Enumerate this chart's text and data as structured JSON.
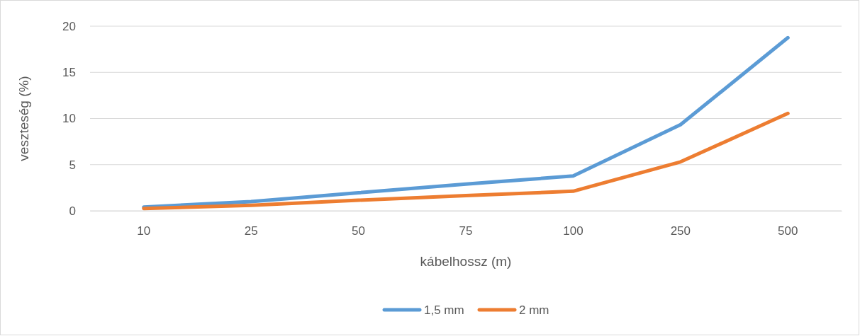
{
  "chart_data": {
    "type": "line",
    "xlabel": "kábelhossz (m)",
    "ylabel": "veszteség (%)",
    "categories": [
      "10",
      "25",
      "50",
      "75",
      "100",
      "250",
      "500"
    ],
    "series": [
      {
        "name": "1,5 mm",
        "color": "#5b9bd5",
        "values": [
          0.4,
          1.0,
          1.95,
          2.9,
          3.77,
          9.33,
          18.75
        ]
      },
      {
        "name": "2 mm",
        "color": "#ed7d31",
        "values": [
          0.25,
          0.6,
          1.15,
          1.65,
          2.12,
          5.3,
          10.55
        ]
      }
    ],
    "ylim": [
      0,
      20
    ],
    "yticks": [
      0,
      5,
      10,
      15,
      20
    ],
    "grid": "y",
    "legend": "bottom",
    "marker": "none",
    "line_style": "solid"
  }
}
